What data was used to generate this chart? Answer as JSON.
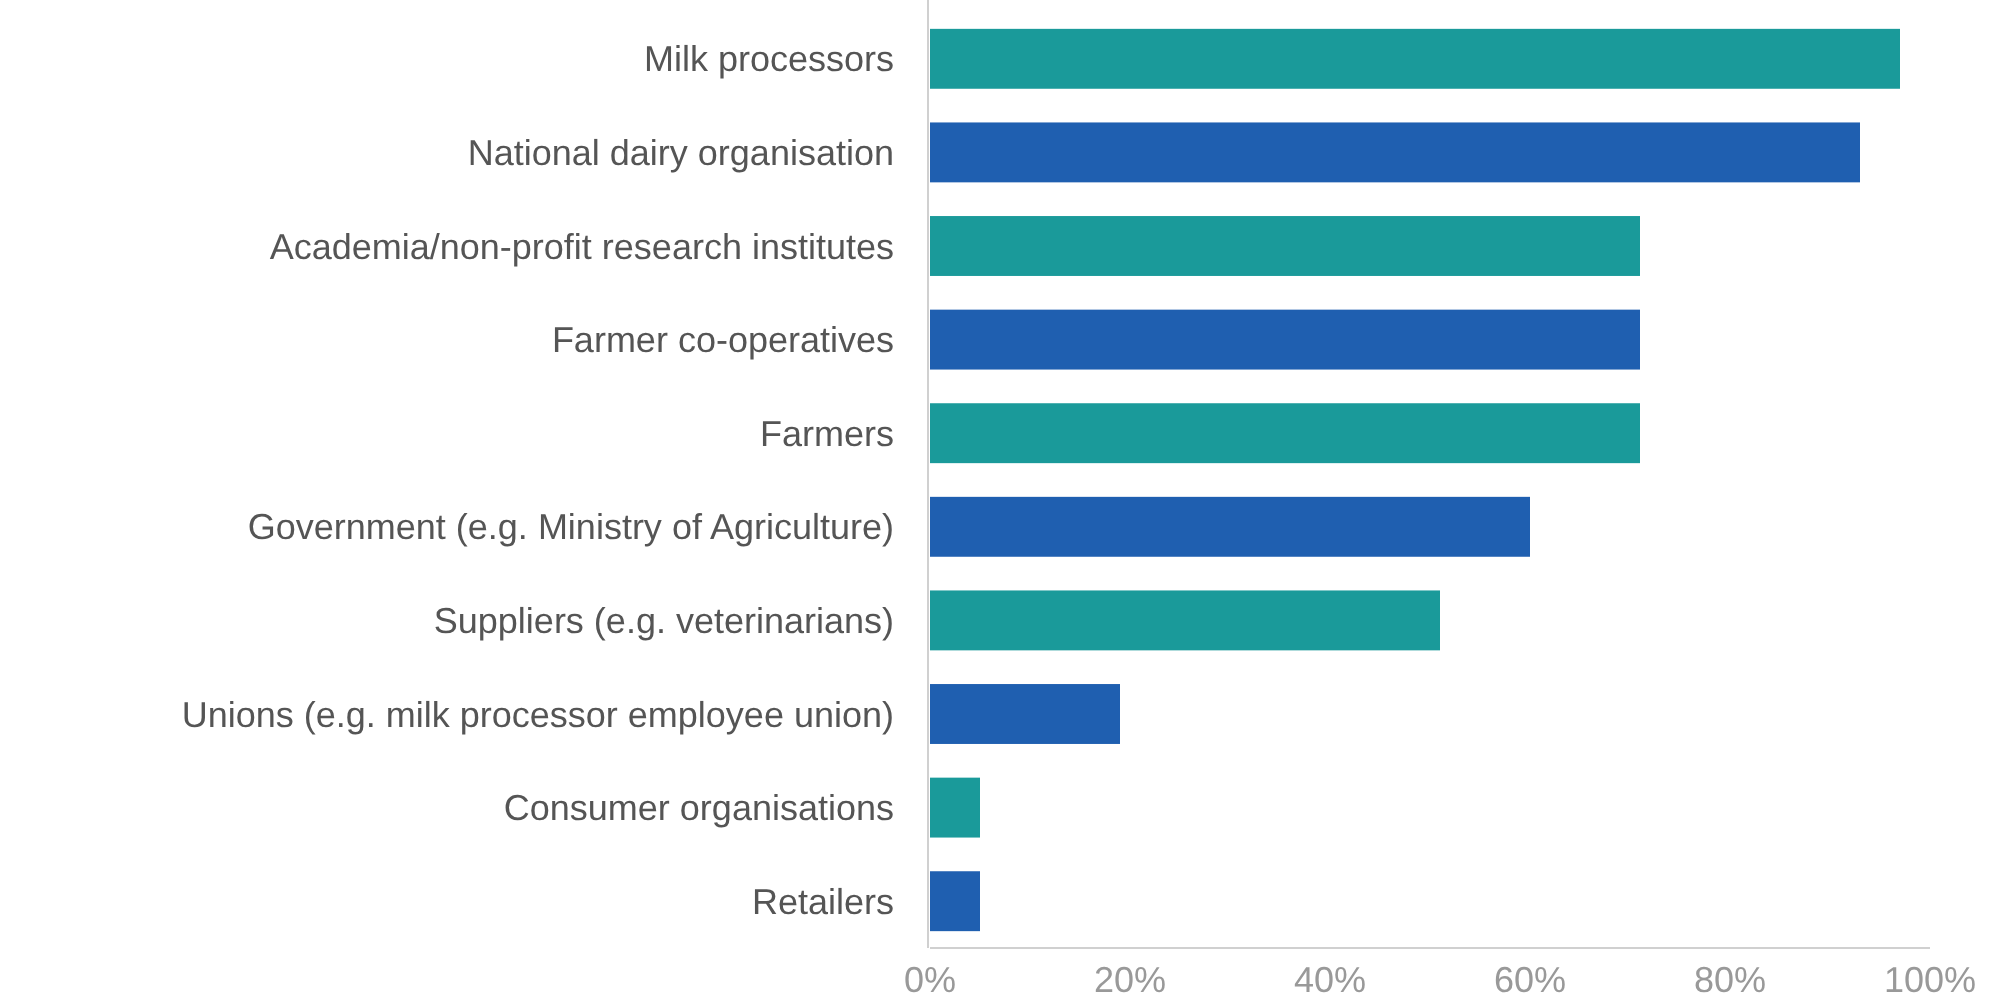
{
  "chart_data": {
    "type": "bar",
    "orientation": "horizontal",
    "categories": [
      "Milk processors",
      "National dairy organisation",
      "Academia/non-profit research institutes",
      "Farmer co-operatives",
      "Farmers",
      "Government (e.g. Ministry of Agriculture)",
      "Suppliers (e.g. veterinarians)",
      "Unions (e.g. milk processor employee union)",
      "Consumer organisations",
      "Retailers"
    ],
    "values": [
      97,
      93,
      71,
      71,
      71,
      60,
      51,
      19,
      5,
      5
    ],
    "colors": [
      "#1a9a9a",
      "#1f5fb0",
      "#1a9a9a",
      "#1f5fb0",
      "#1a9a9a",
      "#1f5fb0",
      "#1a9a9a",
      "#1f5fb0",
      "#1a9a9a",
      "#1f5fb0"
    ],
    "xlim": [
      0,
      100
    ],
    "xticks": [
      {
        "value": 0,
        "label": "0%"
      },
      {
        "value": 20,
        "label": "20%"
      },
      {
        "value": 40,
        "label": "40%"
      },
      {
        "value": 60,
        "label": "60%"
      },
      {
        "value": 80,
        "label": "80%"
      },
      {
        "value": 100,
        "label": "100%"
      }
    ],
    "grid": false
  }
}
